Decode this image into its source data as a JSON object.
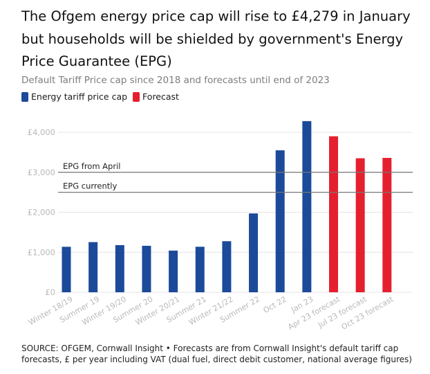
{
  "title": "The Ofgem energy price cap will rise to £4,279 in January but households will be shielded by government's Energy Price Guarantee (EPG)",
  "subtitle": "Default Tariff Price cap since 2018 and forecasts until end of 2023",
  "legend": [
    {
      "label": "Energy tariff price cap",
      "color": "#1b4a9a"
    },
    {
      "label": "Forecast",
      "color": "#e5202e"
    }
  ],
  "source": "SOURCE: OFGEM, Cornwall Insight • Forecasts are from Cornwall Insight's default tariff cap forecasts, £ per year including VAT (dual fuel, direct debit customer, national average figures)",
  "chart_data": {
    "type": "bar",
    "categories": [
      "Winter 18/19",
      "Summer 19",
      "Winter 19/20",
      "Summer 20",
      "Winter 20/21",
      "Summer 21",
      "Winter 21/22",
      "Summer 22",
      "Oct 22",
      "Jan 23",
      "Apr 23 forecast",
      "Jul 23 forecast",
      "Oct 23 forecast"
    ],
    "series": [
      {
        "name": "Energy tariff price cap",
        "color": "#1b4a9a",
        "values": [
          1137,
          1254,
          1179,
          1162,
          1042,
          1138,
          1277,
          1971,
          3549,
          4279,
          null,
          null,
          null
        ]
      },
      {
        "name": "Forecast",
        "color": "#e5202e",
        "values": [
          null,
          null,
          null,
          null,
          null,
          null,
          null,
          null,
          null,
          null,
          3900,
          3350,
          3360
        ]
      }
    ],
    "ylim": [
      0,
      4400
    ],
    "yticks": [
      0,
      1000,
      2000,
      3000,
      4000
    ],
    "ytick_labels": [
      "£0",
      "£1,000",
      "£2,000",
      "£3,000",
      "£4,000"
    ],
    "reference_lines": [
      {
        "label": "EPG from April",
        "value": 3000
      },
      {
        "label": "EPG currently",
        "value": 2500
      }
    ],
    "grid": true
  }
}
